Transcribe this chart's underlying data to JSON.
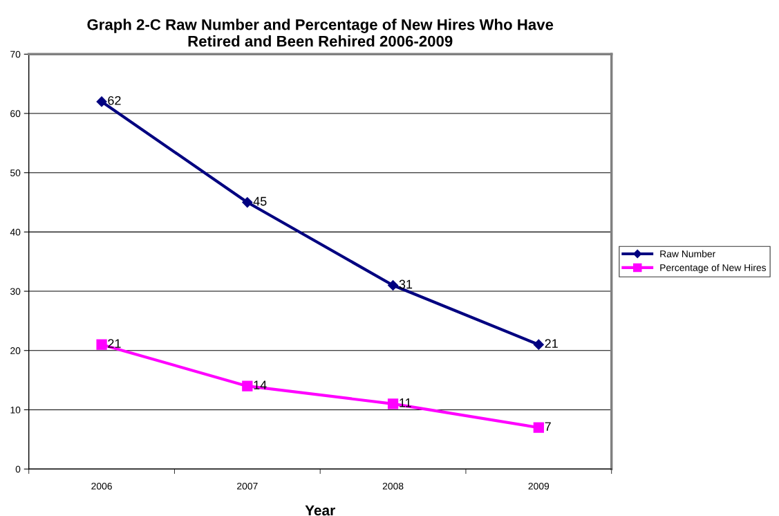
{
  "chart_data": {
    "type": "line",
    "title": "Graph 2-C Raw Number and Percentage of New Hires Who Have\nRetired and Been Rehired 2006-2009",
    "xlabel": "Year",
    "categories": [
      "2006",
      "2007",
      "2008",
      "2009"
    ],
    "series": [
      {
        "name": "Raw Number",
        "color": "#000080",
        "marker": "diamond",
        "values": [
          62,
          45,
          31,
          21
        ]
      },
      {
        "name": "Percentage of New Hires",
        "color": "#ff00ff",
        "marker": "square",
        "values": [
          21,
          14,
          11,
          7
        ]
      }
    ],
    "ylim": [
      0,
      70
    ],
    "yticks": [
      0,
      10,
      20,
      30,
      40,
      50,
      60,
      70
    ],
    "grid": "y",
    "legend": "right",
    "data_labels": true
  }
}
